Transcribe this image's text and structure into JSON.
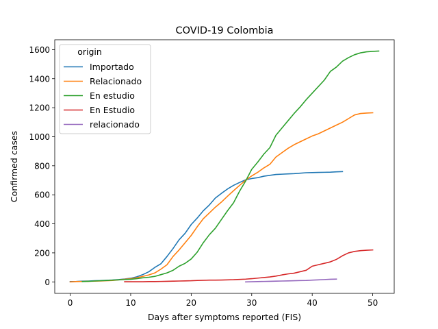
{
  "chart_data": {
    "type": "line",
    "title": "COVID-19 Colombia",
    "xlabel": "Days after symptoms reported (FIS)",
    "ylabel": "Confirmed cases",
    "xlim": [
      -2.55,
      53.55
    ],
    "ylim": [
      -79,
      1668
    ],
    "xticks": [
      0,
      10,
      20,
      30,
      40,
      50
    ],
    "yticks": [
      0,
      200,
      400,
      600,
      800,
      1000,
      1200,
      1400,
      1600
    ],
    "grid": false,
    "legend": {
      "title": "origin",
      "placement": "top-left"
    },
    "series": [
      {
        "name": "Importado",
        "color": "#1f77b4",
        "x": [
          0,
          1,
          2,
          3,
          4,
          5,
          6,
          7,
          8,
          9,
          10,
          11,
          12,
          13,
          14,
          15,
          16,
          17,
          18,
          19,
          20,
          21,
          22,
          23,
          24,
          25,
          26,
          27,
          28,
          29,
          30,
          31,
          32,
          33,
          34,
          35,
          36,
          37,
          38,
          39,
          40,
          41,
          42,
          43,
          44,
          45
        ],
        "y": [
          2,
          3,
          5,
          6,
          8,
          9,
          11,
          13,
          16,
          20,
          25,
          35,
          50,
          70,
          100,
          125,
          175,
          230,
          290,
          335,
          395,
          440,
          490,
          530,
          578,
          610,
          640,
          665,
          685,
          703,
          712,
          718,
          728,
          734,
          740,
          742,
          744,
          746,
          749,
          752,
          753,
          754,
          755,
          756,
          758,
          760
        ]
      },
      {
        "name": "Relacionado",
        "color": "#ff7f0e",
        "x": [
          0,
          1,
          2,
          3,
          4,
          5,
          6,
          7,
          8,
          9,
          10,
          11,
          12,
          13,
          14,
          15,
          16,
          17,
          18,
          19,
          20,
          21,
          22,
          23,
          24,
          25,
          26,
          27,
          28,
          29,
          30,
          31,
          32,
          33,
          34,
          35,
          36,
          37,
          38,
          39,
          40,
          41,
          42,
          43,
          44,
          45,
          46,
          47,
          48,
          49,
          50
        ],
        "y": [
          0,
          2,
          3,
          4,
          5,
          6,
          8,
          10,
          14,
          18,
          22,
          28,
          38,
          48,
          62,
          88,
          118,
          175,
          220,
          270,
          320,
          380,
          435,
          475,
          515,
          550,
          590,
          628,
          665,
          700,
          730,
          755,
          785,
          810,
          860,
          890,
          920,
          945,
          965,
          985,
          1005,
          1020,
          1040,
          1060,
          1080,
          1100,
          1125,
          1150,
          1160,
          1163,
          1165
        ]
      },
      {
        "name": "En estudio",
        "color": "#2ca02c",
        "x": [
          2,
          3,
          4,
          5,
          6,
          7,
          8,
          9,
          10,
          11,
          12,
          13,
          14,
          15,
          16,
          17,
          18,
          19,
          20,
          21,
          22,
          23,
          24,
          25,
          26,
          27,
          28,
          29,
          30,
          31,
          32,
          33,
          34,
          35,
          36,
          37,
          38,
          39,
          40,
          41,
          42,
          43,
          44,
          45,
          46,
          47,
          48,
          49,
          50,
          51
        ],
        "y": [
          2,
          4,
          6,
          8,
          10,
          12,
          14,
          16,
          18,
          22,
          28,
          32,
          38,
          50,
          62,
          80,
          108,
          128,
          158,
          205,
          270,
          325,
          370,
          430,
          490,
          545,
          625,
          695,
          775,
          825,
          880,
          925,
          1010,
          1060,
          1110,
          1160,
          1205,
          1255,
          1300,
          1345,
          1390,
          1450,
          1480,
          1520,
          1545,
          1565,
          1578,
          1585,
          1588,
          1590
        ]
      },
      {
        "name": "En Estudio",
        "color": "#d62728",
        "x": [
          9,
          10,
          11,
          12,
          13,
          14,
          15,
          16,
          17,
          18,
          19,
          20,
          21,
          22,
          23,
          24,
          25,
          26,
          27,
          28,
          29,
          30,
          31,
          32,
          33,
          34,
          35,
          36,
          37,
          38,
          39,
          40,
          41,
          42,
          43,
          44,
          45,
          46,
          47,
          48,
          49,
          50
        ],
        "y": [
          1,
          1,
          1,
          1,
          2,
          2,
          3,
          4,
          5,
          6,
          7,
          8,
          10,
          11,
          12,
          12,
          13,
          14,
          15,
          17,
          19,
          22,
          26,
          30,
          34,
          40,
          48,
          55,
          60,
          70,
          80,
          108,
          118,
          128,
          138,
          155,
          180,
          200,
          210,
          215,
          218,
          220
        ]
      },
      {
        "name": "relacionado",
        "color": "#9467bd",
        "x": [
          29,
          30,
          31,
          32,
          33,
          34,
          35,
          36,
          37,
          38,
          39,
          40,
          41,
          42,
          43,
          44
        ],
        "y": [
          0,
          1,
          2,
          3,
          4,
          5,
          6,
          7,
          8,
          9,
          10,
          12,
          14,
          16,
          18,
          19
        ]
      }
    ]
  }
}
